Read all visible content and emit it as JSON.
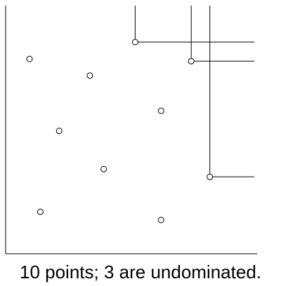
{
  "caption": "10 points; 3 are undominated.",
  "colors": {
    "axis": "#000000",
    "point_stroke": "#000000",
    "point_fill": "#ffffff",
    "lines": "#000000"
  },
  "chart_data": {
    "type": "scatter",
    "title": "",
    "xlabel": "",
    "ylabel": "",
    "grid": false,
    "xlim": [
      0,
      100
    ],
    "ylim": [
      0,
      100
    ],
    "points": [
      {
        "x": 9.5,
        "y": 78.5,
        "undominated": false
      },
      {
        "x": 33.5,
        "y": 71.8,
        "undominated": false
      },
      {
        "x": 51.5,
        "y": 85.3,
        "undominated": true
      },
      {
        "x": 73.8,
        "y": 77.6,
        "undominated": true
      },
      {
        "x": 61.8,
        "y": 57.6,
        "undominated": false
      },
      {
        "x": 21.3,
        "y": 49.5,
        "undominated": false
      },
      {
        "x": 39.0,
        "y": 34.1,
        "undominated": false
      },
      {
        "x": 81.2,
        "y": 31.0,
        "undominated": true
      },
      {
        "x": 13.8,
        "y": 16.9,
        "undominated": false
      },
      {
        "x": 61.8,
        "y": 13.6,
        "undominated": false
      }
    ]
  }
}
